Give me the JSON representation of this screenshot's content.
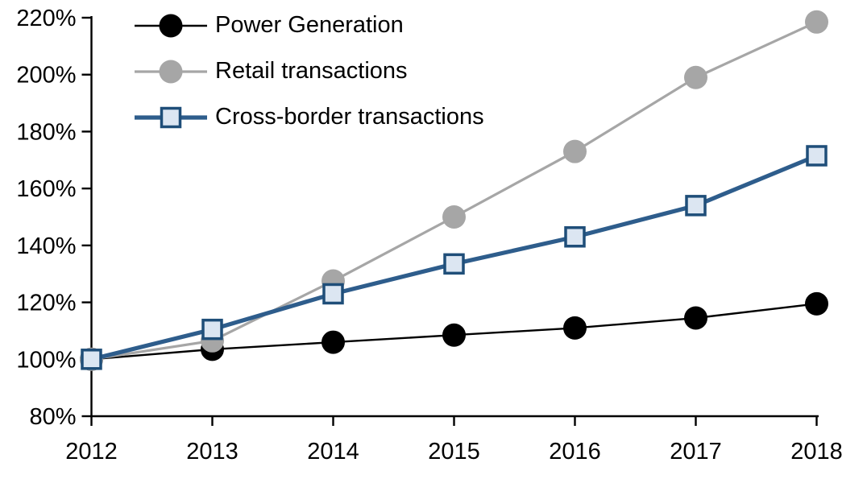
{
  "chart_data": {
    "type": "line",
    "title": "",
    "x": [
      "2012",
      "2013",
      "2014",
      "2015",
      "2016",
      "2017",
      "2018"
    ],
    "xtick_labels": [
      "2012",
      "2013",
      "2014",
      "2015",
      "2016",
      "2017",
      "2018"
    ],
    "ylim": [
      80,
      220
    ],
    "ytick_step": 20,
    "ytick_labels": [
      "80%",
      "100%",
      "120%",
      "140%",
      "160%",
      "180%",
      "200%",
      "220%"
    ],
    "grid": false,
    "legend_position": "top-left-inside",
    "background_color": "#ffffff",
    "axis_color": "#000000",
    "series": [
      {
        "name": "Power Generation",
        "values": [
          100,
          103.5,
          106,
          108.5,
          111,
          114.5,
          119.5
        ],
        "color": "#000000",
        "line_width": 2.4,
        "marker": "circle",
        "marker_fill": "#000000"
      },
      {
        "name": "Retail transactions",
        "values": [
          100,
          106.5,
          127.5,
          150,
          173,
          199,
          218.5
        ],
        "color": "#a6a6a6",
        "line_width": 3.2,
        "marker": "circle",
        "marker_fill": "#a6a6a6"
      },
      {
        "name": "Cross-border transactions",
        "values": [
          100,
          110.5,
          123,
          133.5,
          143,
          154,
          171.5
        ],
        "color": "#2e5d8c",
        "line_width": 5.2,
        "marker": "square",
        "marker_fill": "#dce6f2",
        "marker_stroke": "#1f4e79"
      }
    ]
  }
}
